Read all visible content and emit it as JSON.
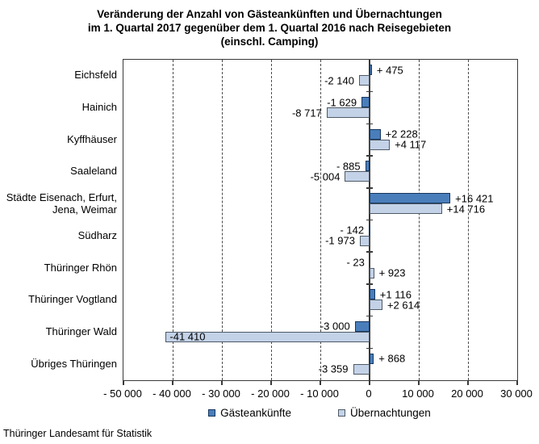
{
  "title": {
    "line1": "Veränderung der Anzahl von Gästeankünften und Übernachtungen",
    "line2": "im 1. Quartal 2017 gegenüber dem 1. Quartal 2016 nach Reisegebieten",
    "line3": "(einschl. Camping)"
  },
  "footer": "Thüringer Landesamt für Statistik",
  "colors": {
    "arrivals_fill": "#4a7ebb",
    "arrivals_border": "#16365d",
    "overnights_fill": "#c3d2e7",
    "overnights_border": "#4f5a66",
    "axis": "#3a3a3a"
  },
  "legend": {
    "items": [
      {
        "label": "Gästeankünfte",
        "fill": "#4a7ebb",
        "border": "#16365d"
      },
      {
        "label": "Übernachtungen",
        "fill": "#c3d2e7",
        "border": "#4f5a66"
      }
    ]
  },
  "chart_data": {
    "type": "bar",
    "orientation": "horizontal",
    "title": "Veränderung der Anzahl von Gästeankünften und Übernachtungen im 1. Quartal 2017 gegenüber dem 1. Quartal 2016 nach Reisegebieten (einschl. Camping)",
    "categories": [
      "Eichsfeld",
      "Hainich",
      "Kyffhäuser",
      "Saaleland",
      "Städte Eisenach, Erfurt,\nJena, Weimar",
      "Südharz",
      "Thüringer Rhön",
      "Thüringer Vogtland",
      "Thüringer Wald",
      "Übriges Thüringen"
    ],
    "series": [
      {
        "name": "Gästeankünfte",
        "fill": "#4a7ebb",
        "border": "#16365d",
        "values": [
          475,
          -1629,
          2228,
          -885,
          16421,
          -142,
          -23,
          1116,
          -3000,
          868
        ],
        "labels": [
          "+ 475",
          "-1 629",
          "+2 228",
          "- 885",
          "+16 421",
          "- 142",
          "- 23",
          "+1 116",
          "-3 000",
          "+ 868"
        ],
        "label_inside": [
          false,
          false,
          false,
          false,
          false,
          false,
          false,
          false,
          false,
          false
        ]
      },
      {
        "name": "Übernachtungen",
        "fill": "#c3d2e7",
        "border": "#4f5a66",
        "values": [
          -2140,
          -8717,
          4117,
          -5004,
          14716,
          -1973,
          923,
          2614,
          -41410,
          -3359
        ],
        "labels": [
          "-2 140",
          "-8 717",
          "+4 117",
          "-5 004",
          "+14 716",
          "-1 973",
          "+ 923",
          "+2 614",
          "-41 410",
          "-3 359"
        ],
        "label_inside": [
          false,
          false,
          false,
          false,
          false,
          false,
          false,
          false,
          true,
          false
        ]
      }
    ],
    "xlim": [
      -50000,
      30000
    ],
    "x_ticks": [
      -50000,
      -40000,
      -30000,
      -20000,
      -10000,
      0,
      10000,
      20000,
      30000
    ],
    "x_tick_labels": [
      "- 50 000",
      "- 40 000",
      "- 30 000",
      "- 20 000",
      "- 10 000",
      "0",
      "10 000",
      "20 000",
      "30 000"
    ],
    "grid": "vertical-dashed",
    "legend_position": "bottom"
  }
}
